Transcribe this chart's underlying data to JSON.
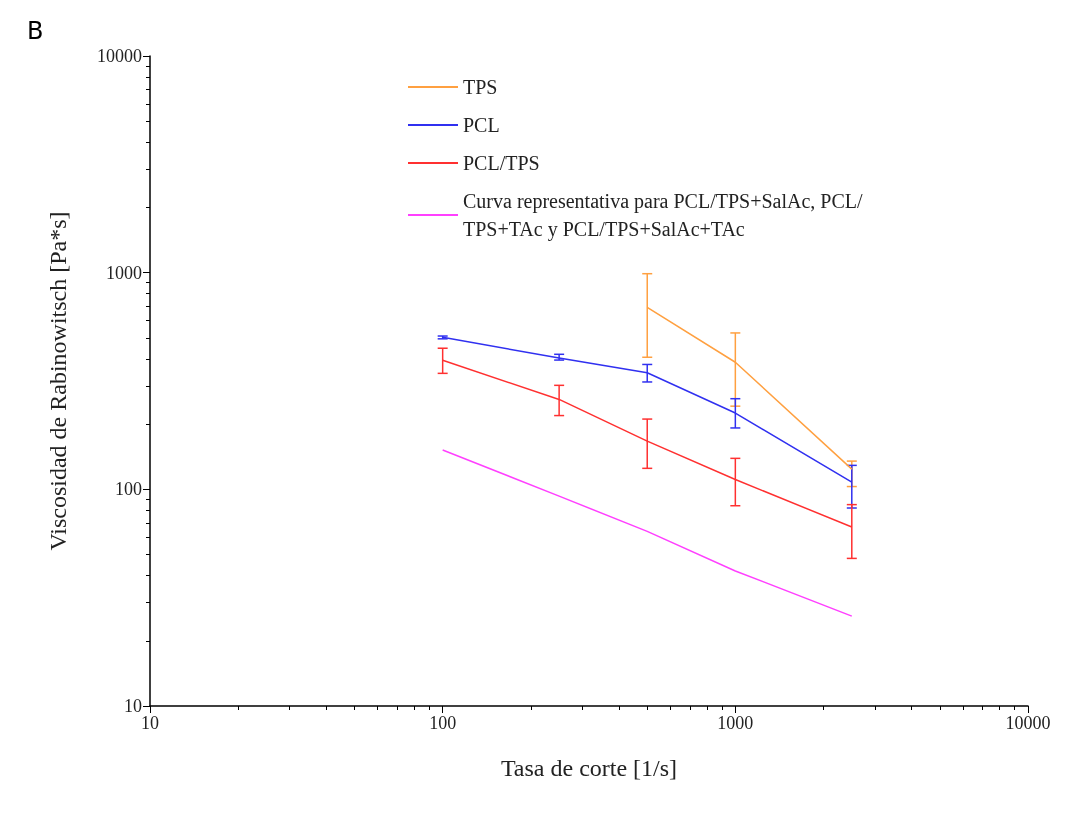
{
  "chart_data": {
    "type": "line",
    "title": "B",
    "xlabel": "Tasa de corte [1/s]",
    "ylabel": "Viscosidad de Rabinowitsch [Pa*s]",
    "log": "xy",
    "xlim": [
      10,
      10000
    ],
    "xticks": [
      10,
      100,
      1000,
      10000
    ],
    "ylim": [
      10,
      10000
    ],
    "yticks": [
      10,
      100,
      1000,
      10000
    ],
    "grid": false,
    "legend": "top",
    "marker": "none",
    "line_style": "solid",
    "series": [
      {
        "name": "TPS",
        "color": "#ffa040",
        "x": [
          500,
          1000,
          2500
        ],
        "values": [
          692,
          386,
          124
        ],
        "errors": [
          [
            407,
            989
          ],
          [
            242,
            527
          ],
          [
            103,
            135
          ]
        ]
      },
      {
        "name": "PCL",
        "color": "#3030f0",
        "x": [
          100,
          250,
          500,
          1000,
          2500
        ],
        "values": [
          503,
          404,
          345,
          225,
          108
        ],
        "errors": [
          [
            495,
            510
          ],
          [
            395,
            420
          ],
          [
            313,
            377
          ],
          [
            192,
            262
          ],
          [
            82,
            129
          ]
        ]
      },
      {
        "name": "PCL/TPS",
        "color": "#ff3030",
        "x": [
          100,
          250,
          500,
          1000,
          2500
        ],
        "values": [
          394,
          260,
          167,
          111,
          67
        ],
        "errors": [
          [
            343,
            448
          ],
          [
            219,
            302
          ],
          [
            125,
            211
          ],
          [
            84,
            139
          ],
          [
            48,
            85
          ]
        ]
      },
      {
        "name": "Curva representativa para PCL/TPS+SalAc, PCL/TPS+TAc y PCL/TPS+SalAc+TAc",
        "color": "#ff40ff",
        "x": [
          100,
          250,
          500,
          1000,
          2500
        ],
        "values": [
          152,
          93,
          64,
          42,
          26
        ]
      }
    ]
  }
}
